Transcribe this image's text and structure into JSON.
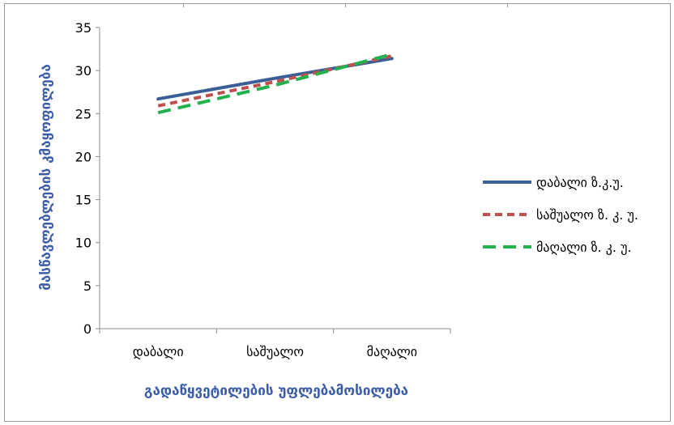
{
  "chart_data": {
    "type": "line",
    "xlabel": "გადაწყვეტილების უფლებამოსილება",
    "ylabel": "მასწავლებლების კმაყოფილება",
    "categories": [
      "დაბალი",
      "საშუალო",
      "მაღალი"
    ],
    "ylim": [
      0,
      35
    ],
    "yticks": [
      0,
      5,
      10,
      15,
      20,
      25,
      30,
      35
    ],
    "grid": false,
    "legend_position": "right",
    "series": [
      {
        "name": "დაბალი ზ.კ.უ.",
        "values": [
          26.7,
          29.1,
          31.4
        ],
        "color": "#3a5f97",
        "dash": "solid"
      },
      {
        "name": "საშუალო ზ. კ. უ.",
        "values": [
          25.9,
          28.7,
          31.7
        ],
        "color": "#c0504d",
        "dash": "dashed"
      },
      {
        "name": "მაღალი ზ. კ. უ.",
        "values": [
          25.1,
          28.3,
          31.9
        ],
        "color": "#22b14c",
        "dash": "longdash"
      }
    ]
  }
}
